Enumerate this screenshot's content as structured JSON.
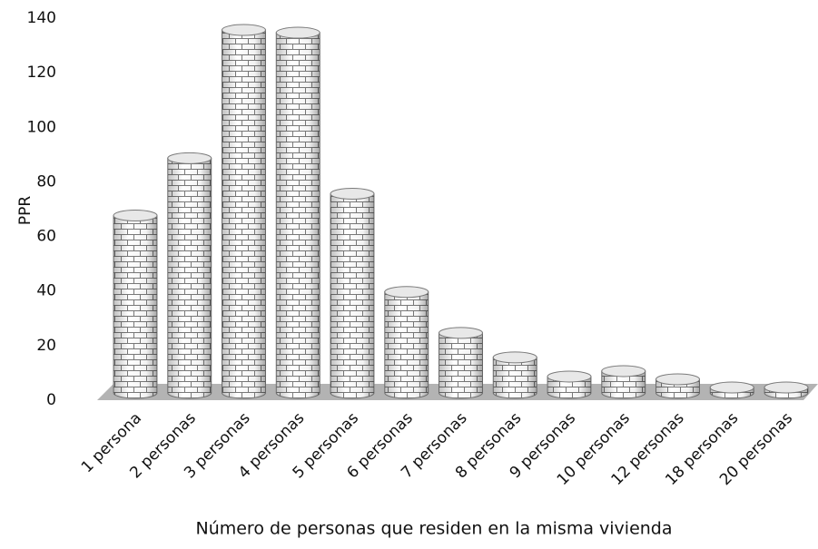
{
  "chart_data": {
    "type": "bar",
    "x_label": "Número de personas que residen en la misma vivienda",
    "y_label": "PPR",
    "categories": [
      "1 persona",
      "2 personas",
      "3 personas",
      "4 personas",
      "5 personas",
      "6 personas",
      "7 personas",
      "8 personas",
      "9 personas",
      "10 personas",
      "12 personas",
      "18 personas",
      "20 personas"
    ],
    "values": [
      65,
      86,
      133,
      132,
      73,
      37,
      22,
      13,
      6,
      8,
      5,
      2,
      2
    ],
    "color": "#7a7a7a",
    "ylim": [
      0,
      140
    ],
    "yticks": [
      0,
      20,
      40,
      60,
      80,
      100,
      120,
      140
    ],
    "grid": false
  }
}
